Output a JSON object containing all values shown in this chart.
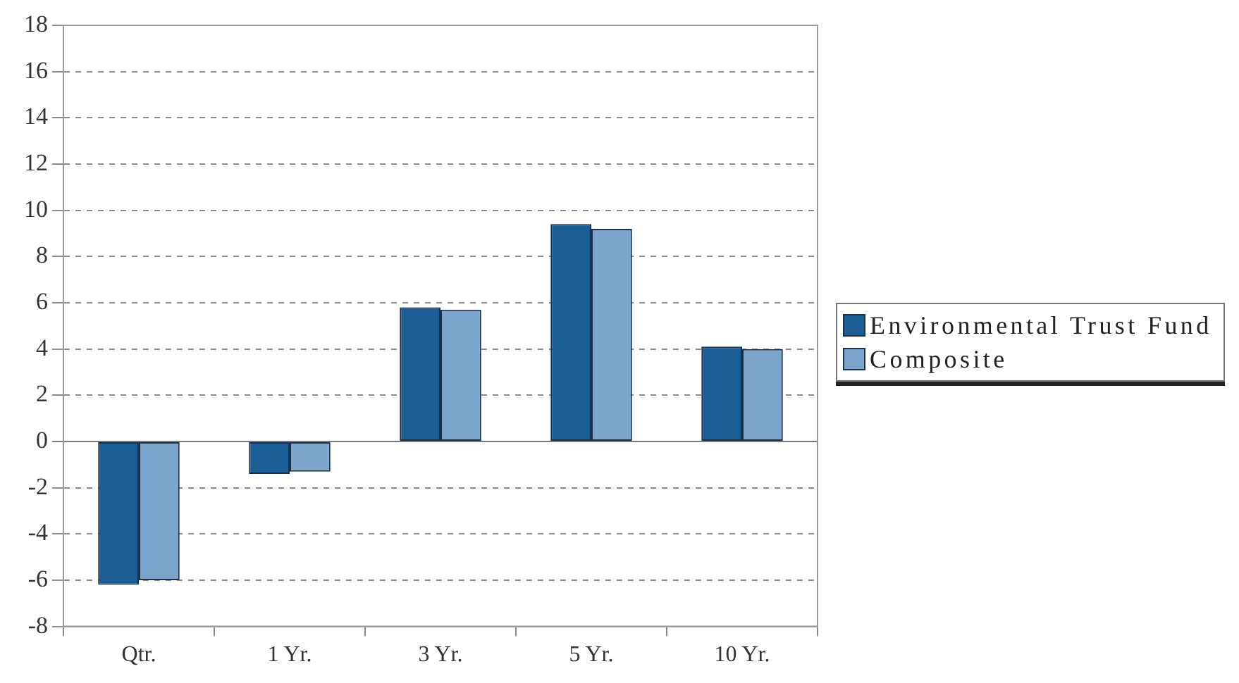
{
  "chart_data": {
    "type": "bar",
    "categories": [
      "Qtr.",
      "1 Yr.",
      "3 Yr.",
      "5 Yr.",
      "10 Yr."
    ],
    "series": [
      {
        "name": "Environmental Trust Fund",
        "color": "#1b5e95",
        "values": [
          -6.2,
          -1.4,
          5.8,
          9.4,
          4.1
        ]
      },
      {
        "name": "Composite",
        "color": "#7ba5cc",
        "values": [
          -6.0,
          -1.3,
          5.7,
          9.2,
          4.0
        ]
      }
    ],
    "ylim": [
      -8,
      18
    ],
    "yticks": [
      -8,
      -6,
      -4,
      -2,
      0,
      2,
      4,
      6,
      8,
      10,
      12,
      14,
      16,
      18
    ],
    "grid": "y",
    "legend": "right"
  }
}
